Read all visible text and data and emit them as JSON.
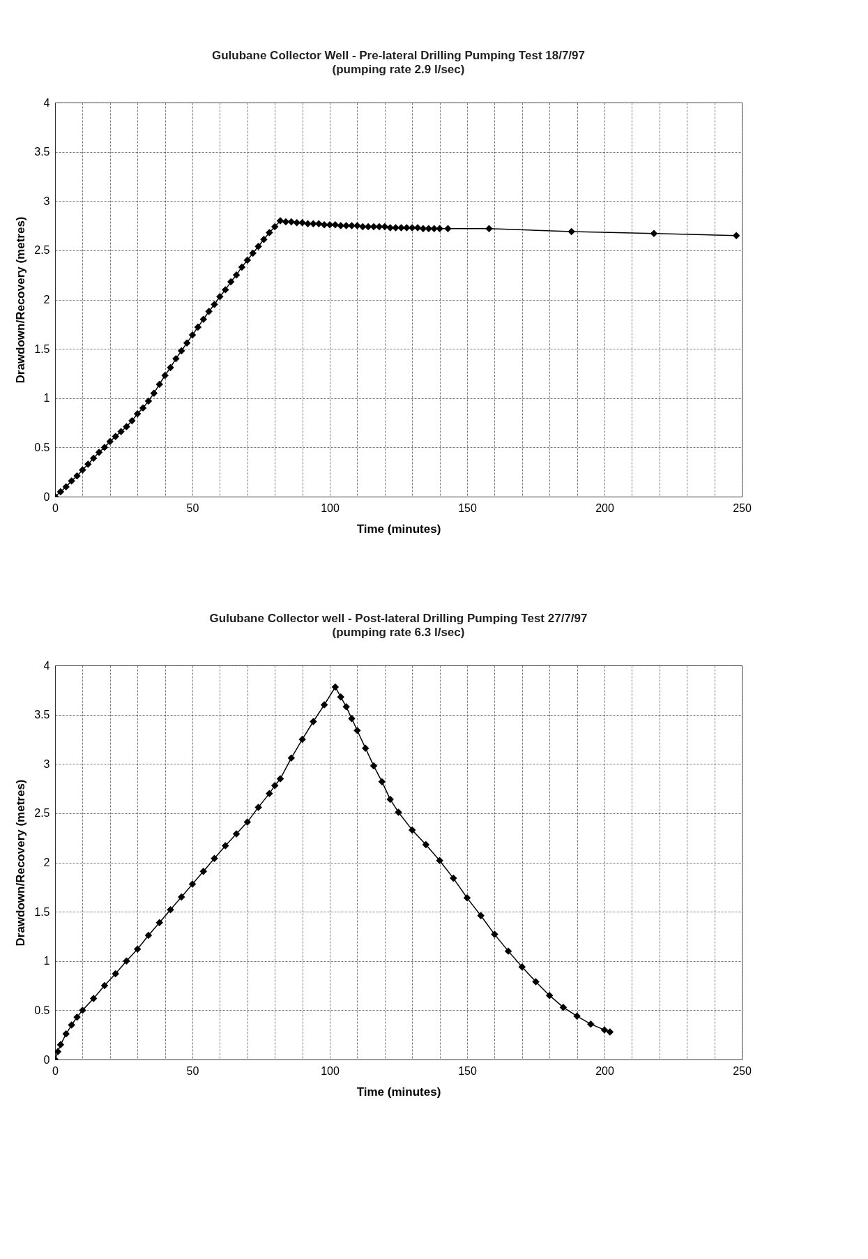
{
  "chart_data": [
    {
      "type": "line",
      "title": "Gulubane Collector Well - Pre-lateral Drilling Pumping Test 18/7/97",
      "subtitle": "(pumping rate 2.9 l/sec)",
      "xlabel": "Time (minutes)",
      "ylabel": "Drawdown/Recovery (metres)",
      "xlim": [
        0,
        250
      ],
      "ylim": [
        0,
        4
      ],
      "xticks": [
        0,
        {
          "value": 10,
          "label": null
        },
        {
          "value": 20,
          "label": null
        },
        {
          "value": 30,
          "label": null
        },
        {
          "value": 40,
          "label": null
        },
        50,
        {
          "value": 60,
          "label": null
        },
        {
          "value": 70,
          "label": null
        },
        {
          "value": 80,
          "label": null
        },
        {
          "value": 90,
          "label": null
        },
        100,
        {
          "value": 110,
          "label": null
        },
        {
          "value": 120,
          "label": null
        },
        {
          "value": 130,
          "label": null
        },
        {
          "value": 140,
          "label": null
        },
        150,
        {
          "value": 160,
          "label": null
        },
        {
          "value": 170,
          "label": null
        },
        {
          "value": 180,
          "label": null
        },
        {
          "value": 190,
          "label": null
        },
        200,
        {
          "value": 210,
          "label": null
        },
        {
          "value": 220,
          "label": null
        },
        {
          "value": 230,
          "label": null
        },
        {
          "value": 240,
          "label": null
        },
        250
      ],
      "yticks": [
        0,
        0.5,
        1,
        1.5,
        2,
        2.5,
        3,
        3.5,
        4
      ],
      "grid": true,
      "marker": "diamond",
      "series": [
        {
          "color": "#000000",
          "x": [
            0,
            2,
            4,
            6,
            8,
            10,
            12,
            14,
            16,
            18,
            20,
            22,
            24,
            26,
            28,
            30,
            32,
            34,
            36,
            38,
            40,
            42,
            44,
            46,
            48,
            50,
            52,
            54,
            56,
            58,
            60,
            62,
            64,
            66,
            68,
            70,
            72,
            74,
            76,
            78,
            80,
            82,
            84,
            86,
            88,
            90,
            92,
            94,
            96,
            98,
            100,
            102,
            104,
            106,
            108,
            110,
            112,
            114,
            116,
            118,
            120,
            122,
            124,
            126,
            128,
            130,
            132,
            134,
            136,
            138,
            140,
            143,
            158,
            188,
            218,
            248
          ],
          "values": [
            0,
            0.05,
            0.1,
            0.16,
            0.21,
            0.27,
            0.33,
            0.39,
            0.45,
            0.5,
            0.56,
            0.61,
            0.66,
            0.71,
            0.77,
            0.84,
            0.9,
            0.97,
            1.05,
            1.14,
            1.23,
            1.31,
            1.4,
            1.48,
            1.56,
            1.64,
            1.72,
            1.8,
            1.88,
            1.95,
            2.03,
            2.1,
            2.18,
            2.25,
            2.33,
            2.4,
            2.47,
            2.54,
            2.61,
            2.68,
            2.74,
            2.8,
            2.79,
            2.79,
            2.78,
            2.78,
            2.77,
            2.77,
            2.77,
            2.76,
            2.76,
            2.76,
            2.75,
            2.75,
            2.75,
            2.75,
            2.74,
            2.74,
            2.74,
            2.74,
            2.74,
            2.73,
            2.73,
            2.73,
            2.73,
            2.73,
            2.73,
            2.72,
            2.72,
            2.72,
            2.72,
            2.72,
            2.72,
            2.69,
            2.67,
            2.65
          ]
        }
      ]
    },
    {
      "type": "line",
      "title": "Gulubane Collector well - Post-lateral Drilling Pumping Test 27/7/97",
      "subtitle": "(pumping rate 6.3 l/sec)",
      "xlabel": "Time (minutes)",
      "ylabel": "Drawdown/Recovery (metres)",
      "xlim": [
        0,
        250
      ],
      "ylim": [
        0,
        4
      ],
      "xticks": [
        0,
        {
          "value": 10,
          "label": null
        },
        {
          "value": 20,
          "label": null
        },
        {
          "value": 30,
          "label": null
        },
        {
          "value": 40,
          "label": null
        },
        50,
        {
          "value": 60,
          "label": null
        },
        {
          "value": 70,
          "label": null
        },
        {
          "value": 80,
          "label": null
        },
        {
          "value": 90,
          "label": null
        },
        100,
        {
          "value": 110,
          "label": null
        },
        {
          "value": 120,
          "label": null
        },
        {
          "value": 130,
          "label": null
        },
        {
          "value": 140,
          "label": null
        },
        150,
        {
          "value": 160,
          "label": null
        },
        {
          "value": 170,
          "label": null
        },
        {
          "value": 180,
          "label": null
        },
        {
          "value": 190,
          "label": null
        },
        200,
        {
          "value": 210,
          "label": null
        },
        {
          "value": 220,
          "label": null
        },
        {
          "value": 230,
          "label": null
        },
        {
          "value": 240,
          "label": null
        },
        250
      ],
      "yticks": [
        0,
        0.5,
        1,
        1.5,
        2,
        2.5,
        3,
        3.5,
        4
      ],
      "grid": true,
      "marker": "diamond",
      "series": [
        {
          "color": "#000000",
          "x": [
            0,
            1,
            2,
            4,
            6,
            8,
            10,
            14,
            18,
            22,
            26,
            30,
            34,
            38,
            42,
            46,
            50,
            54,
            58,
            62,
            66,
            70,
            74,
            78,
            80,
            82,
            86,
            90,
            94,
            98,
            102,
            104,
            106,
            108,
            110,
            113,
            116,
            119,
            122,
            125,
            130,
            135,
            140,
            145,
            150,
            155,
            160,
            165,
            170,
            175,
            180,
            185,
            190,
            195,
            200,
            202
          ],
          "values": [
            0,
            0.08,
            0.15,
            0.26,
            0.35,
            0.43,
            0.5,
            0.62,
            0.75,
            0.87,
            1.0,
            1.12,
            1.26,
            1.39,
            1.52,
            1.65,
            1.78,
            1.91,
            2.04,
            2.17,
            2.29,
            2.41,
            2.56,
            2.7,
            2.78,
            2.85,
            3.06,
            3.25,
            3.43,
            3.6,
            3.78,
            3.68,
            3.58,
            3.46,
            3.34,
            3.16,
            2.98,
            2.82,
            2.64,
            2.51,
            2.33,
            2.18,
            2.02,
            1.84,
            1.64,
            1.46,
            1.27,
            1.1,
            0.94,
            0.79,
            0.65,
            0.53,
            0.44,
            0.36,
            0.3,
            0.28
          ]
        }
      ]
    }
  ]
}
